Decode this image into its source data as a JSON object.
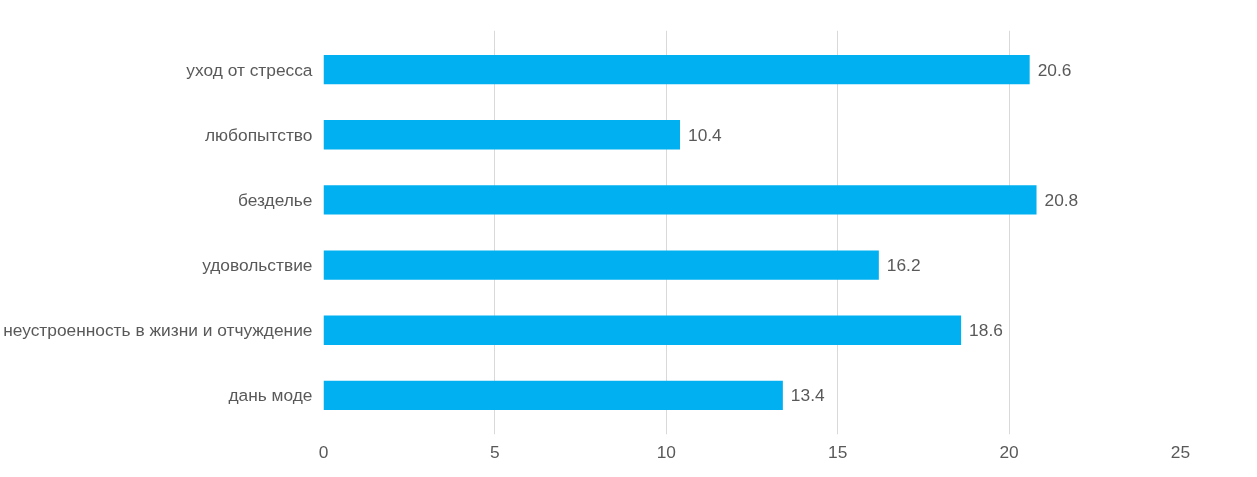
{
  "chart_data": {
    "type": "bar",
    "orientation": "horizontal",
    "categories": [
      "уход от стресса",
      "любопытство",
      "безделье",
      "удовольствие",
      "неустроенность в жизни и отчуждение",
      "дань моде"
    ],
    "values": [
      20.6,
      10.4,
      20.8,
      16.2,
      18.6,
      13.4
    ],
    "color": "#00b0f0",
    "xlim": [
      0,
      25
    ],
    "xticks": [
      0,
      5,
      10,
      15,
      20,
      25
    ],
    "grid": "x",
    "data_labels": true
  }
}
